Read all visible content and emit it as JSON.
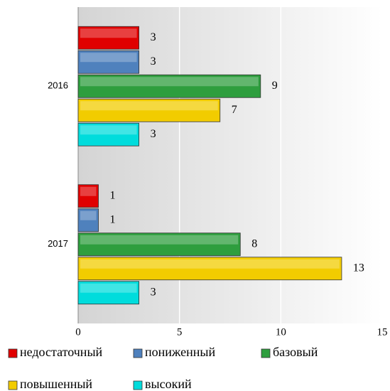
{
  "chart_data": {
    "type": "barh",
    "categories": [
      "2016",
      "2017"
    ],
    "series": [
      {
        "name": "недостаточный",
        "color": "#e00000",
        "values": [
          3,
          1
        ]
      },
      {
        "name": "пониженный",
        "color": "#4f81bd",
        "values": [
          3,
          1
        ]
      },
      {
        "name": "базовый",
        "color": "#2e9e3e",
        "values": [
          9,
          8
        ]
      },
      {
        "name": "повышенный",
        "color": "#f2cc00",
        "values": [
          7,
          13
        ]
      },
      {
        "name": "высокий",
        "color": "#00dcdc",
        "values": [
          3,
          3
        ]
      }
    ],
    "xlim": [
      0,
      15
    ],
    "xticks": [
      0,
      5,
      10,
      15
    ],
    "grid": true,
    "legend": "bottom"
  }
}
